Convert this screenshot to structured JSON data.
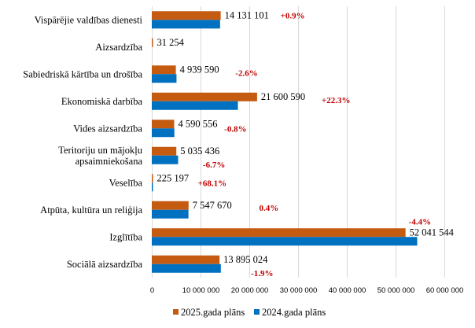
{
  "chart_data": {
    "type": "bar",
    "orientation": "horizontal",
    "title": "",
    "xlabel": "",
    "ylabel": "",
    "xlim": [
      0,
      60000000
    ],
    "xticks": [
      0,
      10000000,
      20000000,
      30000000,
      40000000,
      50000000,
      60000000
    ],
    "xtick_labels": [
      "0",
      "10 000 000",
      "20 000 000",
      "30 000 000",
      "40 000 000",
      "50 000 000",
      "60 000 000"
    ],
    "grid": true,
    "legend_position": "bottom",
    "categories": [
      [
        "Vispārējie valdības dienesti"
      ],
      [
        "Aizsardzība"
      ],
      [
        "Sabiedriskā kārtība un drošība"
      ],
      [
        "Ekonomiskā darbība"
      ],
      [
        "Vides aizsardzība"
      ],
      [
        "Teritoriju un mājokļu",
        "apsaimniekošana"
      ],
      [
        "Veselība"
      ],
      [
        "Atpūta, kultūra un reliģija"
      ],
      [
        "Izglītība"
      ],
      [
        "Sociālā aizsardzība"
      ]
    ],
    "series": [
      {
        "name": "2025.gada plāns",
        "color": "#C55A11",
        "values": [
          14131101,
          31254,
          4939590,
          21600590,
          4590556,
          5035436,
          225197,
          7547670,
          52041544,
          13895024
        ],
        "labels": [
          "14 131 101",
          "31 254",
          "4 939 590",
          "21 600 590",
          "4 590 556",
          "5 035 436",
          "225 197",
          "7 547 670",
          "52 041 544",
          "13 895 024"
        ]
      },
      {
        "name": "2024.gada plāns",
        "color": "#0070C0",
        "values": [
          14005000,
          0,
          5071000,
          17662000,
          4627000,
          5397000,
          134000,
          7518000,
          54437000,
          14164000
        ]
      }
    ],
    "change_labels": [
      "+0.9%",
      "",
      "-2.6%",
      "+22.3%",
      "-0.8%",
      "-6.7%",
      "+68.1%",
      "0.4%",
      "-4.4%",
      "-1.9%"
    ]
  }
}
